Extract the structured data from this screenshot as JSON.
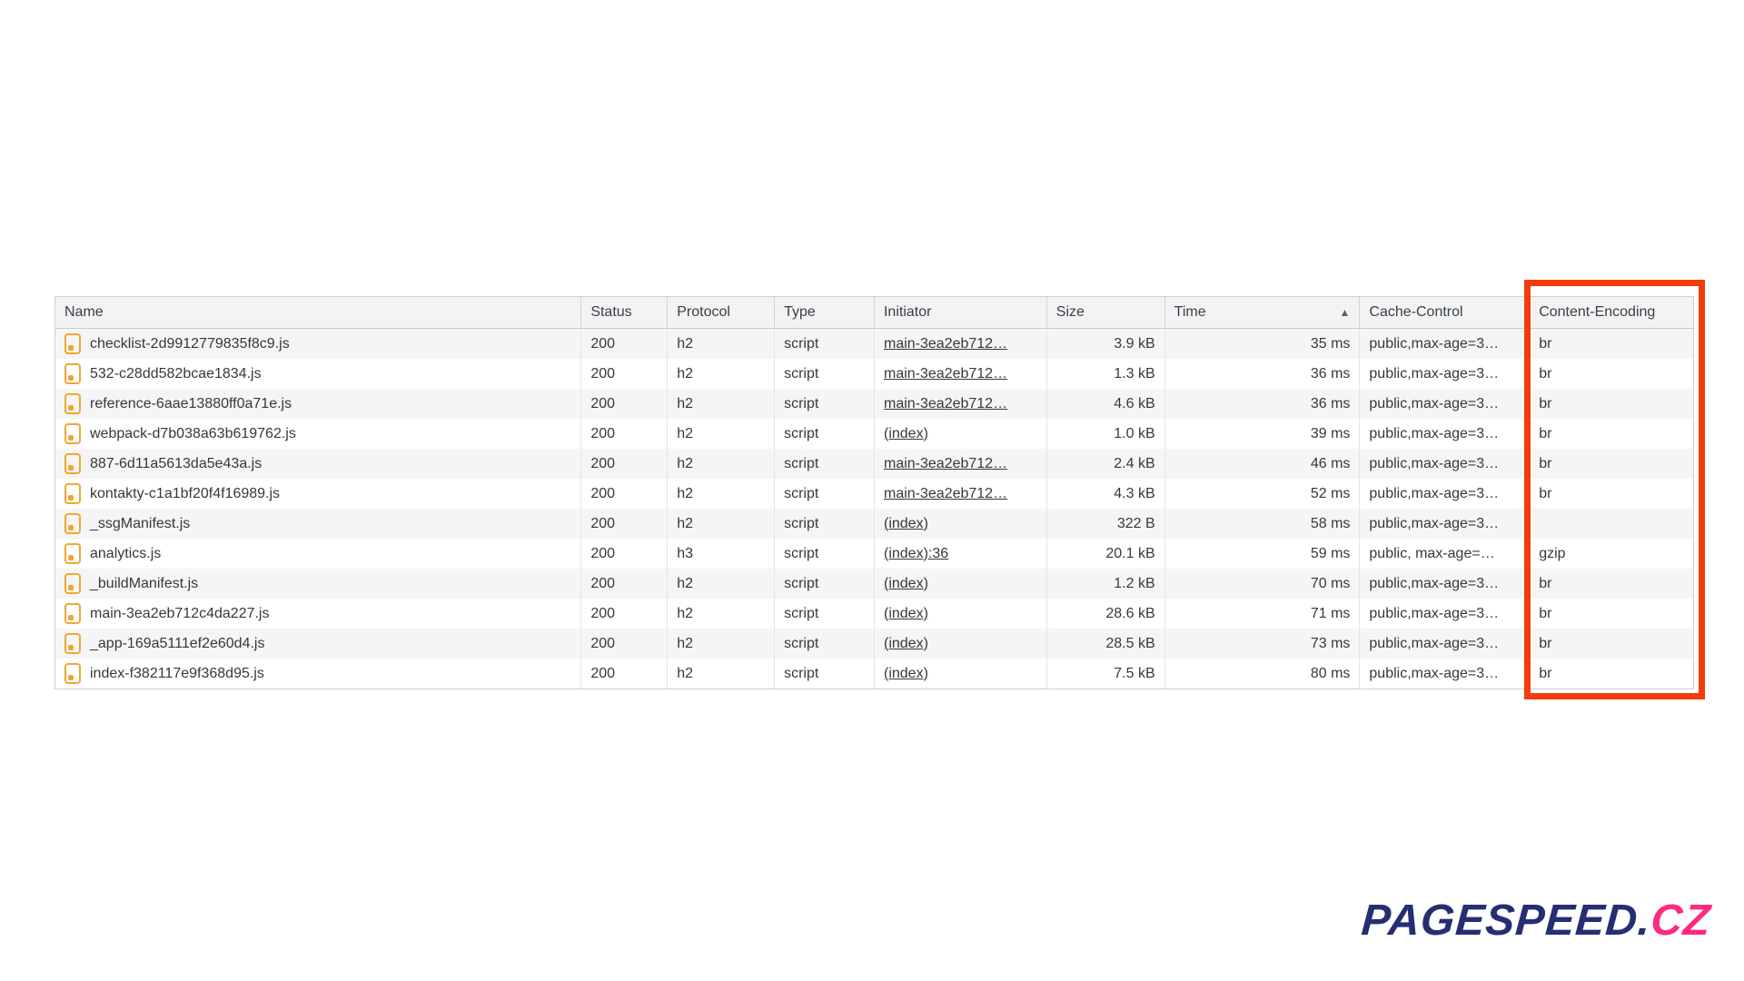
{
  "table": {
    "columns": [
      {
        "key": "name",
        "label": "Name"
      },
      {
        "key": "status",
        "label": "Status"
      },
      {
        "key": "protocol",
        "label": "Protocol"
      },
      {
        "key": "type",
        "label": "Type"
      },
      {
        "key": "initiator",
        "label": "Initiator"
      },
      {
        "key": "size",
        "label": "Size"
      },
      {
        "key": "time",
        "label": "Time",
        "sort_indicator": "▲"
      },
      {
        "key": "cache_control",
        "label": "Cache-Control"
      },
      {
        "key": "content_encoding",
        "label": "Content-Encoding",
        "highlighted": true
      }
    ],
    "rows": [
      {
        "name": "checklist-2d9912779835f8c9.js",
        "status": "200",
        "protocol": "h2",
        "type": "script",
        "initiator": "main-3ea2eb712…",
        "size": "3.9 kB",
        "time": "35 ms",
        "cache_control": "public,max-age=3…",
        "content_encoding": "br"
      },
      {
        "name": "532-c28dd582bcae1834.js",
        "status": "200",
        "protocol": "h2",
        "type": "script",
        "initiator": "main-3ea2eb712…",
        "size": "1.3 kB",
        "time": "36 ms",
        "cache_control": "public,max-age=3…",
        "content_encoding": "br"
      },
      {
        "name": "reference-6aae13880ff0a71e.js",
        "status": "200",
        "protocol": "h2",
        "type": "script",
        "initiator": "main-3ea2eb712…",
        "size": "4.6 kB",
        "time": "36 ms",
        "cache_control": "public,max-age=3…",
        "content_encoding": "br"
      },
      {
        "name": "webpack-d7b038a63b619762.js",
        "status": "200",
        "protocol": "h2",
        "type": "script",
        "initiator": "(index)",
        "size": "1.0 kB",
        "time": "39 ms",
        "cache_control": "public,max-age=3…",
        "content_encoding": "br"
      },
      {
        "name": "887-6d11a5613da5e43a.js",
        "status": "200",
        "protocol": "h2",
        "type": "script",
        "initiator": "main-3ea2eb712…",
        "size": "2.4 kB",
        "time": "46 ms",
        "cache_control": "public,max-age=3…",
        "content_encoding": "br"
      },
      {
        "name": "kontakty-c1a1bf20f4f16989.js",
        "status": "200",
        "protocol": "h2",
        "type": "script",
        "initiator": "main-3ea2eb712…",
        "size": "4.3 kB",
        "time": "52 ms",
        "cache_control": "public,max-age=3…",
        "content_encoding": "br"
      },
      {
        "name": "_ssgManifest.js",
        "status": "200",
        "protocol": "h2",
        "type": "script",
        "initiator": "(index)",
        "size": "322 B",
        "time": "58 ms",
        "cache_control": "public,max-age=3…",
        "content_encoding": ""
      },
      {
        "name": "analytics.js",
        "status": "200",
        "protocol": "h3",
        "type": "script",
        "initiator": "(index):36",
        "size": "20.1 kB",
        "time": "59 ms",
        "cache_control": "public, max-age=…",
        "content_encoding": "gzip"
      },
      {
        "name": "_buildManifest.js",
        "status": "200",
        "protocol": "h2",
        "type": "script",
        "initiator": "(index)",
        "size": "1.2 kB",
        "time": "70 ms",
        "cache_control": "public,max-age=3…",
        "content_encoding": "br"
      },
      {
        "name": "main-3ea2eb712c4da227.js",
        "status": "200",
        "protocol": "h2",
        "type": "script",
        "initiator": "(index)",
        "size": "28.6 kB",
        "time": "71 ms",
        "cache_control": "public,max-age=3…",
        "content_encoding": "br"
      },
      {
        "name": "_app-169a5111ef2e60d4.js",
        "status": "200",
        "protocol": "h2",
        "type": "script",
        "initiator": "(index)",
        "size": "28.5 kB",
        "time": "73 ms",
        "cache_control": "public,max-age=3…",
        "content_encoding": "br"
      },
      {
        "name": "index-f382117e9f368d95.js",
        "status": "200",
        "protocol": "h2",
        "type": "script",
        "initiator": "(index)",
        "size": "7.5 kB",
        "time": "80 ms",
        "cache_control": "public,max-age=3…",
        "content_encoding": "br"
      }
    ]
  },
  "highlight": {
    "column": "content_encoding",
    "color": "#f43b0e"
  },
  "icons": {
    "script_file_icon_color": "#f0a732",
    "sort_ascending_icon": "▲"
  },
  "logo": {
    "primary_text": "PAGESPEED.",
    "accent_text": "CZ",
    "primary_color": "#262e73",
    "accent_color": "#fd2b80"
  }
}
